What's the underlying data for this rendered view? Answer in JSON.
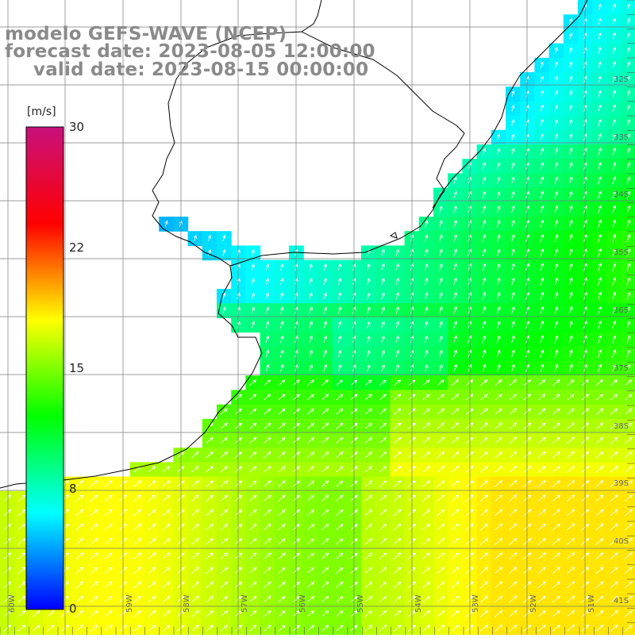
{
  "titles": {
    "line1": "modelo GEFS-WAVE (NCEP)",
    "line2": "forecast date: 2023-08-05 12:00:00",
    "line3": "valid date: 2023-08-15 00:00:00"
  },
  "colorbar": {
    "unit": "[m/s]",
    "ticks": [
      "30",
      "22",
      "15",
      "8",
      "0"
    ],
    "colors": [
      "#0000ff",
      "#00ffff",
      "#00ff00",
      "#ffff00",
      "#ff0000",
      "#c8107c"
    ]
  },
  "latitude_labels": [
    "32S",
    "33S",
    "34S",
    "35S",
    "36S",
    "37S",
    "38S",
    "39S",
    "40S",
    "41S"
  ],
  "longitude_labels": [
    "60W",
    "59W",
    "58W",
    "57W",
    "56W",
    "55W",
    "54W",
    "53W",
    "52W",
    "51W"
  ],
  "map_colors": {
    "land": "#ffffff",
    "grid": "#7a7a7a",
    "coast": "#000000",
    "arrows": "#ffffff"
  }
}
